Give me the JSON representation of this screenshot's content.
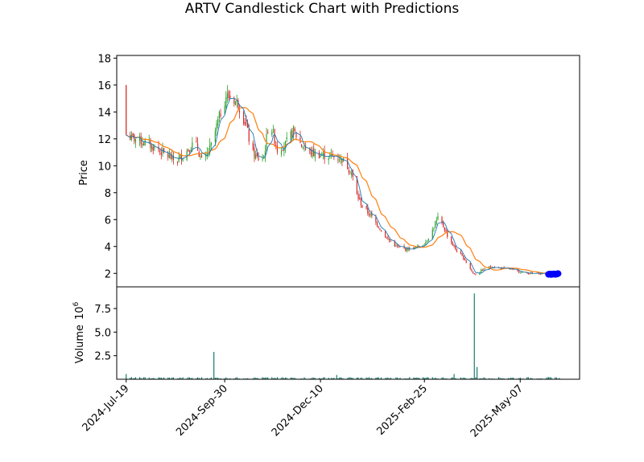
{
  "chart_data": {
    "type": "candlestick",
    "title": "ARTV Candlestick Chart with Predictions",
    "price_panel": {
      "ylabel": "Price",
      "ylim": [
        1.0,
        18.2
      ],
      "yticks": [
        2,
        4,
        6,
        8,
        10,
        12,
        14,
        16,
        18
      ],
      "ytick_labels": [
        "2",
        "4",
        "6",
        "8",
        "10",
        "12",
        "14",
        "16",
        "18"
      ]
    },
    "volume_panel": {
      "ylabel": "Volume",
      "scale_label": "10",
      "scale_exponent": "6",
      "ylim": [
        0,
        9.8
      ],
      "yticks": [
        2.5,
        5.0,
        7.5
      ],
      "ytick_labels": [
        "2.5",
        "5.0",
        "7.5"
      ]
    },
    "x_axis": {
      "start": "2024-07-19",
      "end": "2025-06-05",
      "xlim": [
        "2024-07-12",
        "2025-06-20"
      ],
      "ticks": [
        "2024-07-19",
        "2024-09-30",
        "2024-12-10",
        "2025-02-25",
        "2025-05-07"
      ],
      "tick_labels": [
        "2024-Jul-19",
        "2024-Sep-30",
        "2024-Dec-10",
        "2025-Feb-25",
        "2025-May-07"
      ]
    },
    "colors": {
      "up": "#2ca02c",
      "down": "#d62728",
      "ma_short": "#1f77b4",
      "ma_long": "#ff7f0e",
      "volume": "#147a6e",
      "prediction": "#0000ff"
    },
    "anchors": {
      "dates": [
        "2024-07-19",
        "2024-07-22",
        "2024-07-26",
        "2024-08-02",
        "2024-08-10",
        "2024-08-18",
        "2024-08-25",
        "2024-09-01",
        "2024-09-08",
        "2024-09-14",
        "2024-09-20",
        "2024-09-25",
        "2024-10-01",
        "2024-10-06",
        "2024-10-10",
        "2024-10-16",
        "2024-10-20",
        "2024-10-25",
        "2024-10-29",
        "2024-11-02",
        "2024-11-08",
        "2024-11-14",
        "2024-11-20",
        "2024-11-26",
        "2024-12-02",
        "2024-12-10",
        "2024-12-18",
        "2024-12-26",
        "2025-01-02",
        "2025-01-06",
        "2025-01-10",
        "2025-01-16",
        "2025-01-22",
        "2025-01-28",
        "2025-02-04",
        "2025-02-11",
        "2025-02-18",
        "2025-02-25",
        "2025-03-03",
        "2025-03-07",
        "2025-03-11",
        "2025-03-15",
        "2025-03-20",
        "2025-03-27",
        "2025-04-02",
        "2025-04-05",
        "2025-04-08",
        "2025-04-15",
        "2025-04-22",
        "2025-04-30",
        "2025-05-07",
        "2025-05-14",
        "2025-05-21",
        "2025-05-28",
        "2025-06-05"
      ],
      "prices": [
        12.3,
        12.1,
        12.0,
        11.7,
        11.3,
        10.8,
        10.3,
        11.0,
        11.8,
        10.1,
        11.5,
        13.3,
        15.2,
        15.0,
        14.6,
        13.0,
        11.0,
        10.5,
        10.6,
        13.5,
        11.2,
        11.6,
        12.6,
        11.5,
        11.0,
        10.8,
        10.7,
        10.5,
        9.5,
        7.8,
        7.0,
        6.3,
        5.5,
        4.6,
        4.0,
        3.8,
        3.9,
        4.2,
        5.2,
        6.1,
        5.5,
        4.6,
        3.8,
        3.0,
        2.0,
        1.9,
        2.2,
        2.5,
        2.4,
        2.3,
        2.1,
        2.0,
        2.0,
        1.95,
        1.95
      ]
    },
    "volume_spikes": [
      {
        "date": "2024-07-19",
        "value": 0.55
      },
      {
        "date": "2024-09-22",
        "value": 2.9
      },
      {
        "date": "2024-12-22",
        "value": 0.45
      },
      {
        "date": "2025-03-19",
        "value": 0.55
      },
      {
        "date": "2025-04-03",
        "value": 9.1
      },
      {
        "date": "2025-04-05",
        "value": 1.3
      }
    ],
    "predictions": {
      "dates": [
        "2025-05-28",
        "2025-05-29",
        "2025-05-30",
        "2025-05-31",
        "2025-06-01",
        "2025-06-02",
        "2025-06-03",
        "2025-06-04"
      ],
      "values": [
        1.93,
        1.95,
        1.92,
        1.94,
        1.96,
        1.93,
        1.95,
        1.98
      ]
    }
  }
}
